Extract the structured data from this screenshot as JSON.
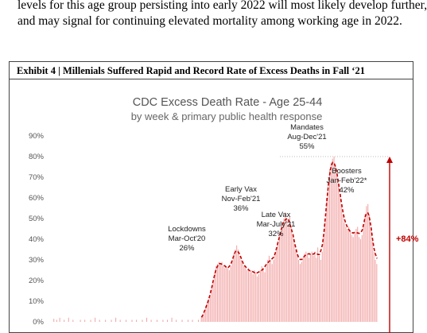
{
  "intro_lines": [
    "levels for this age group persisting into early 2022 will most likely develop further,",
    "and may signal for continuing elevated mortality among working age in 2022."
  ],
  "exhibit_title": "Exhibit 4 | Millenials Suffered Rapid and Record Rate of Excess Deaths in Fall ‘21",
  "colors": {
    "bar": "#f2a3a3",
    "trend": "#c00000",
    "arrow": "#c00000",
    "gridline": "#bbbbbb"
  },
  "chart_data": {
    "type": "bar",
    "title": "CDC Excess Death Rate - Age 25-44",
    "subtitle": "by week & primary public health response",
    "ylim": [
      0,
      0.9
    ],
    "yticks": [
      "0%",
      "10%",
      "20%",
      "30%",
      "40%",
      "50%",
      "60%",
      "70%",
      "80%",
      "90%"
    ],
    "y_tick_values": [
      0,
      0.1,
      0.2,
      0.3,
      0.4,
      0.5,
      0.6,
      0.7,
      0.8,
      0.9
    ],
    "series": [
      {
        "type": "bar",
        "values": [
          0.015,
          0.0,
          0.01,
          0.0,
          0.02,
          0.0,
          0.0,
          0.01,
          0.0,
          0.0,
          0.02,
          0.0,
          0.0,
          0.01,
          0.0,
          0.0,
          0.0,
          0.0,
          0.01,
          0.0,
          0.0,
          0.01,
          0.0,
          0.0,
          0.0,
          0.01,
          0.0,
          0.0,
          0.02,
          0.0,
          0.0,
          0.01,
          0.0,
          0.0,
          0.0,
          0.01,
          0.0,
          0.0,
          0.0,
          0.01,
          0.0,
          0.0,
          0.02,
          0.0,
          0.0,
          0.01,
          0.0,
          0.0,
          0.0,
          0.01,
          0.0,
          0.0,
          0.0,
          0.01,
          0.0,
          0.0,
          0.01,
          0.0,
          0.0,
          0.0,
          0.01,
          0.0,
          0.0,
          0.02,
          0.0,
          0.0,
          0.01,
          0.0,
          0.0,
          0.0,
          0.01,
          0.0,
          0.0,
          0.0,
          0.01,
          0.0,
          0.0,
          0.01,
          0.0,
          0.0,
          0.02,
          0.0,
          0.0,
          0.01,
          0.0,
          0.0,
          0.0,
          0.01,
          0.0,
          0.0,
          0.0,
          0.01,
          0.0,
          0.0,
          0.01,
          0.0,
          0.0,
          0.0,
          0.01,
          0.0,
          0.02,
          0.03,
          0.05,
          0.07,
          0.09,
          0.11,
          0.13,
          0.16,
          0.2,
          0.24,
          0.27,
          0.28,
          0.29,
          0.28,
          0.29,
          0.27,
          0.26,
          0.27,
          0.26,
          0.25,
          0.27,
          0.3,
          0.33,
          0.35,
          0.37,
          0.35,
          0.32,
          0.3,
          0.29,
          0.27,
          0.26,
          0.25,
          0.26,
          0.24,
          0.25,
          0.23,
          0.25,
          0.24,
          0.22,
          0.23,
          0.25,
          0.27,
          0.26,
          0.24,
          0.27,
          0.3,
          0.32,
          0.3,
          0.28,
          0.3,
          0.33,
          0.36,
          0.39,
          0.42,
          0.44,
          0.47,
          0.5,
          0.53,
          0.5,
          0.47,
          0.51,
          0.46,
          0.42,
          0.38,
          0.35,
          0.33,
          0.3,
          0.28,
          0.29,
          0.31,
          0.33,
          0.34,
          0.33,
          0.31,
          0.33,
          0.34,
          0.32,
          0.34,
          0.31,
          0.36,
          0.32,
          0.3,
          0.34,
          0.41,
          0.5,
          0.6,
          0.68,
          0.74,
          0.77,
          0.79,
          0.8,
          0.76,
          0.72,
          0.67,
          0.62,
          0.57,
          0.52,
          0.48,
          0.46,
          0.45,
          0.46,
          0.44,
          0.42,
          0.41,
          0.43,
          0.45,
          0.46,
          0.41,
          0.4,
          0.42,
          0.47,
          0.52,
          0.56,
          0.57,
          0.52,
          0.46,
          0.39,
          0.34,
          0.3,
          0.28
        ]
      },
      {
        "type": "line",
        "style": "dashed",
        "smoothing": "rolling average"
      }
    ],
    "annotations": [
      {
        "line1": "Lockdowns",
        "line2": "Mar-Oct'20",
        "value": "26%"
      },
      {
        "line1": "Early Vax",
        "line2": "Nov-Feb'21",
        "value": "36%"
      },
      {
        "line1": "Late Vax",
        "line2": "Mar-July'21",
        "value": "32%"
      },
      {
        "line1": "Mandates",
        "line2": "Aug-Dec'21",
        "value": "55%"
      },
      {
        "line1": "Boosters",
        "line2": "Jan-Feb'22*",
        "value": "42%"
      }
    ],
    "reference_line": {
      "y": 0.8,
      "style": "dotted"
    },
    "change_arrow": {
      "from": 0.0,
      "to": 0.8,
      "label": "+84%"
    },
    "grid": false,
    "legend": "none"
  }
}
